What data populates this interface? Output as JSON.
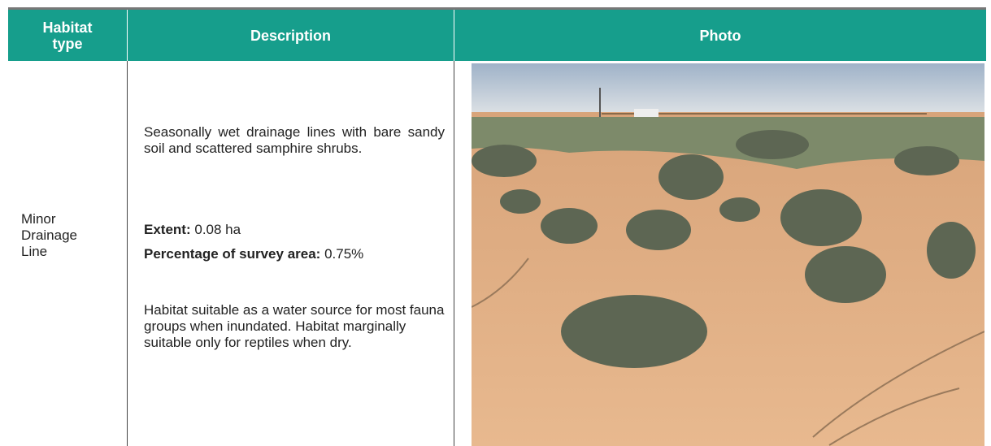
{
  "table": {
    "headers": [
      "Habitat type",
      "Description",
      "Photo"
    ],
    "rows": [
      {
        "habitat_type": "Minor Drainage Line",
        "description": {
          "summary": "Seasonally wet drainage lines with bare sandy soil and scattered samphire shrubs.",
          "extent_label": "Extent:",
          "extent_value": "0.08 ha",
          "percentage_label": "Percentage of survey area:",
          "percentage_value": "0.75%",
          "suitability": "Habitat suitable as a water source for most fauna groups when inundated. Habitat marginally suitable only for reptiles when dry."
        }
      }
    ]
  }
}
